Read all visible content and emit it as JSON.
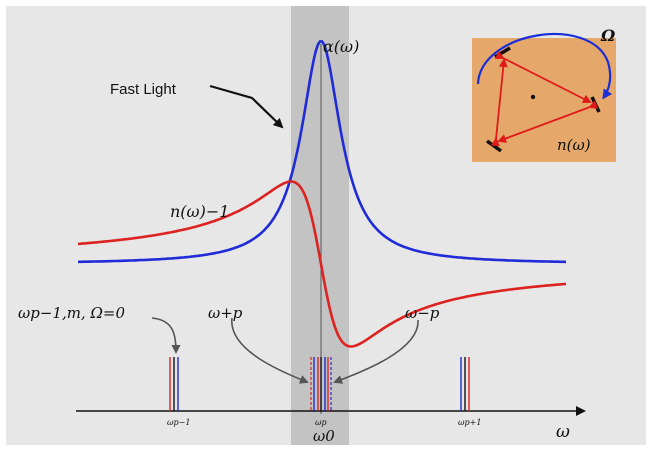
{
  "labels": {
    "fast_light": "Fast Light",
    "alpha": "α(ω)",
    "n_minus_1": "n(ω)−1",
    "omega_cap": "Ω",
    "n_omega": "n(ω)",
    "omega_p1m": "ωp−1,m, Ω=0",
    "omega_p_plus": "ω+p",
    "omega_p_minus": "ω−p",
    "tick_left": "ωp−1",
    "tick_center": "ωp",
    "tick_right": "ωp+1",
    "omega_0": "ω0",
    "omega_axis": "ω"
  },
  "colors": {
    "background": "#e7e7e7",
    "band": "#c3c3c3",
    "alpha_curve": "#1f2bd6",
    "n_curve": "#dd2222",
    "ring_box": "#e6a86a",
    "arrow_red": "#e01a1a",
    "arrow_blue": "#1a2fd8",
    "axis": "#111111",
    "pointer": "#555555"
  },
  "icons": {
    "ring_resonator": "triangular-ring-resonator",
    "rotation_arrow": "curved-rotation-arrow"
  }
}
